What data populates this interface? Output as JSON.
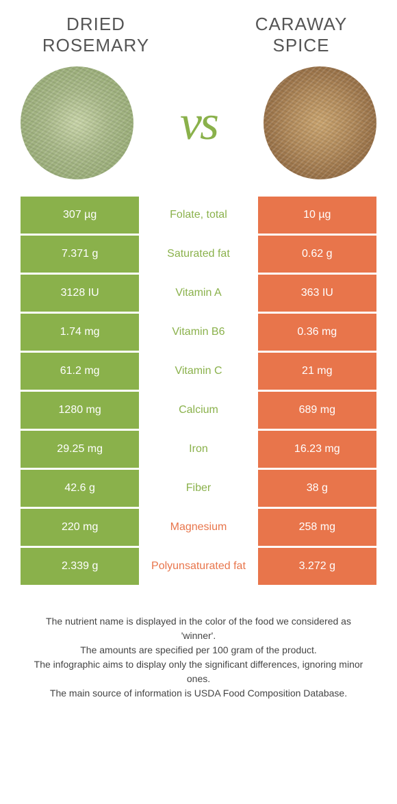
{
  "header": {
    "left_line1": "DRIED",
    "left_line2": "ROSEMARY",
    "right_line1": "CARAWAY",
    "right_line2": "SPICE"
  },
  "vs": "vs",
  "colors": {
    "green": "#8ab14b",
    "orange": "#e8754b"
  },
  "rows": [
    {
      "left": "307 µg",
      "mid": "Folate, total",
      "right": "10 µg",
      "winner": "left"
    },
    {
      "left": "7.371 g",
      "mid": "Saturated fat",
      "right": "0.62 g",
      "winner": "left"
    },
    {
      "left": "3128 IU",
      "mid": "Vitamin A",
      "right": "363 IU",
      "winner": "left"
    },
    {
      "left": "1.74 mg",
      "mid": "Vitamin B6",
      "right": "0.36 mg",
      "winner": "left"
    },
    {
      "left": "61.2 mg",
      "mid": "Vitamin C",
      "right": "21 mg",
      "winner": "left"
    },
    {
      "left": "1280 mg",
      "mid": "Calcium",
      "right": "689 mg",
      "winner": "left"
    },
    {
      "left": "29.25 mg",
      "mid": "Iron",
      "right": "16.23 mg",
      "winner": "left"
    },
    {
      "left": "42.6 g",
      "mid": "Fiber",
      "right": "38 g",
      "winner": "left"
    },
    {
      "left": "220 mg",
      "mid": "Magnesium",
      "right": "258 mg",
      "winner": "right"
    },
    {
      "left": "2.339 g",
      "mid": "Polyunsaturated fat",
      "right": "3.272 g",
      "winner": "right"
    }
  ],
  "footer": {
    "l1": "The nutrient name is displayed in the color of the food we considered as 'winner'.",
    "l2": "The amounts are specified per 100 gram of the product.",
    "l3": "The infographic aims to display only the significant differences, ignoring minor ones.",
    "l4": "The main source of information is USDA Food Composition Database."
  }
}
